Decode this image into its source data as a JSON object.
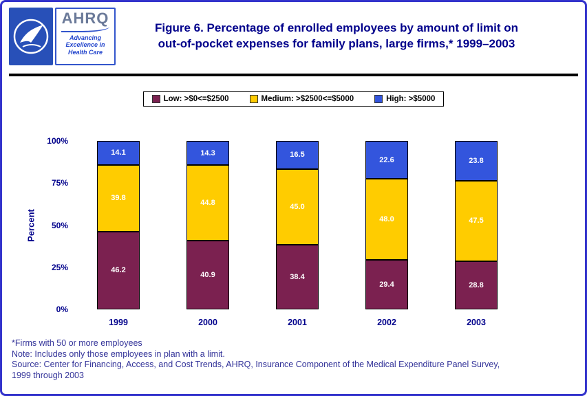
{
  "header": {
    "title_line1": "Figure 6. Percentage of enrolled employees by amount of limit on",
    "title_line2": "out-of-pocket expenses for family plans, large firms,* 1999–2003",
    "logo": {
      "ahrq": "AHRQ",
      "tagline": "Advancing Excellence in Health Care"
    }
  },
  "chart_data": {
    "type": "bar",
    "stacked": true,
    "title": "Figure 6. Percentage of enrolled employees by amount of limit on out-of-pocket expenses for family plans, large firms, 1999–2003",
    "categories": [
      "1999",
      "2000",
      "2001",
      "2002",
      "2003"
    ],
    "series": [
      {
        "name": "Low: >$0<=$2500",
        "color": "#7B2150",
        "values": [
          46.2,
          40.9,
          38.4,
          29.4,
          28.8
        ]
      },
      {
        "name": "Medium: >$2500<=$5000",
        "color": "#FFCC00",
        "values": [
          39.8,
          44.8,
          45.0,
          48.0,
          47.5
        ]
      },
      {
        "name": "High: >$5000",
        "color": "#3355DD",
        "values": [
          14.1,
          14.3,
          16.5,
          22.6,
          23.8
        ]
      }
    ],
    "xlabel": "",
    "ylabel": "Percent",
    "ylim": [
      0,
      100
    ],
    "yticks": [
      "0%",
      "25%",
      "50%",
      "75%",
      "100%"
    ],
    "legend_position": "top",
    "grid": false
  },
  "footnotes": [
    "*Firms with 50 or more employees",
    "Note: Includes only those employees in plan with a limit.",
    "Source: Center for Financing, Access, and Cost Trends, AHRQ, Insurance Component of the Medical Expenditure Panel Survey,",
    "1999 through 2003"
  ]
}
